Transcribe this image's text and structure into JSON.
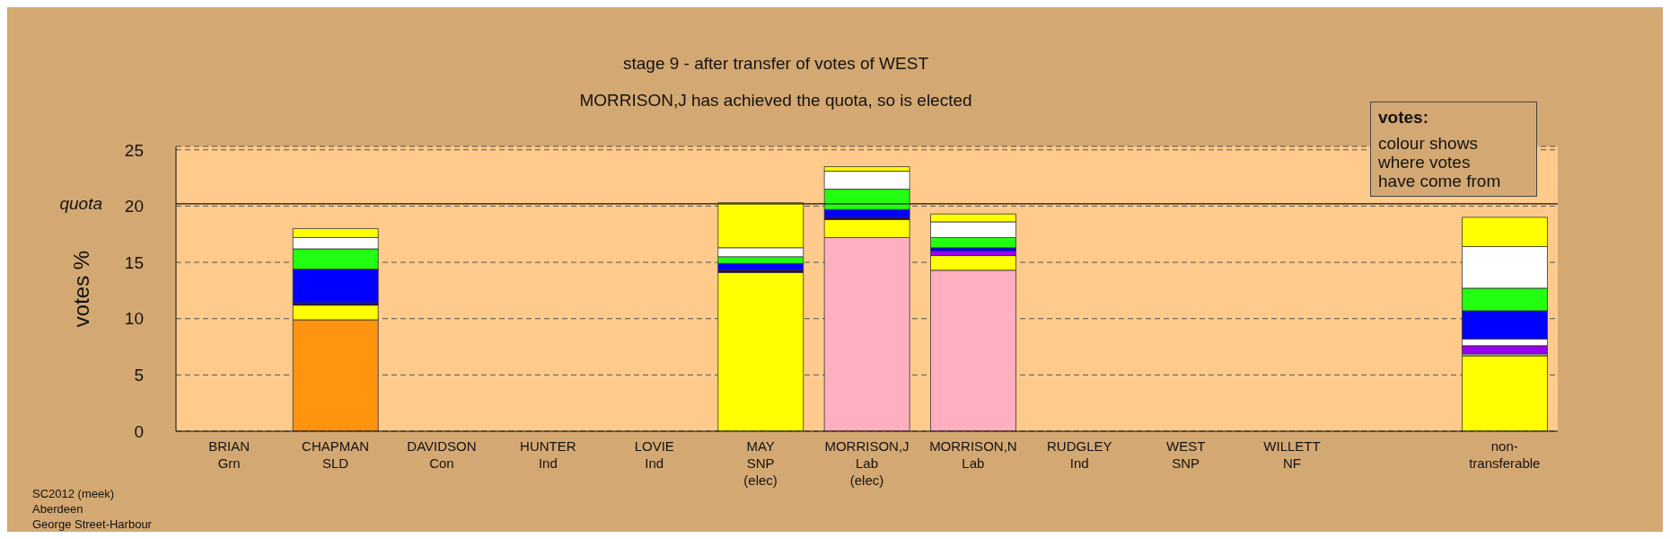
{
  "chart_data": {
    "type": "bar",
    "stacked": true,
    "title": "stage 9 - after transfer of votes of WEST",
    "subtitle": "MORRISON,J has achieved the quota, so is elected",
    "ylabel": "votes %",
    "categories": [
      "BRIAN\nGrn",
      "CHAPMAN\nSLD",
      "DAVIDSON\nCon",
      "HUNTER\nInd",
      "LOVIE\nInd",
      "MAY\nSNP\n(elec)",
      "MORRISON,J\nLab\n(elec)",
      "MORRISON,N\nLab",
      "RUDGLEY\nInd",
      "WEST\nSNP",
      "WILLETT\nNF",
      null,
      "non-\ntransferable"
    ],
    "series": [
      {
        "colors": [
          null,
          "#ff9411",
          null,
          null,
          null,
          "#ffff00",
          "#ffb0c0",
          "#ffb0c0",
          null,
          null,
          null,
          null,
          "#ffff00"
        ],
        "values": [
          null,
          9.9,
          null,
          null,
          null,
          14.1,
          17.2,
          14.3,
          null,
          null,
          null,
          null,
          6.7
        ]
      },
      {
        "color": "#ffff00",
        "values": [
          null,
          1.3,
          null,
          null,
          null,
          null,
          1.6,
          1.3,
          null,
          null,
          null,
          null,
          null
        ]
      },
      {
        "colors": [
          null,
          "#220044",
          null,
          null,
          null,
          "#220044",
          "#220044",
          null,
          null,
          null,
          null,
          null,
          "#999999"
        ],
        "values": [
          null,
          0.2,
          null,
          null,
          null,
          0.2,
          0.2,
          null,
          null,
          null,
          null,
          null,
          0.2
        ]
      },
      {
        "color": "#9900ee",
        "values": [
          null,
          null,
          null,
          null,
          null,
          null,
          null,
          0.4,
          null,
          null,
          null,
          null,
          0.7
        ]
      },
      {
        "color": "#ffffff",
        "values": [
          null,
          null,
          null,
          null,
          null,
          null,
          null,
          null,
          null,
          null,
          null,
          null,
          0.6
        ]
      },
      {
        "color": "#0000ff",
        "values": [
          null,
          3.0,
          null,
          null,
          null,
          0.6,
          0.7,
          0.3,
          null,
          null,
          null,
          null,
          2.5
        ]
      },
      {
        "color": "#22ff11",
        "values": [
          null,
          1.8,
          null,
          null,
          null,
          0.6,
          1.8,
          0.9,
          null,
          null,
          null,
          null,
          2.0
        ]
      },
      {
        "color": "#ffffff",
        "values": [
          null,
          1.0,
          null,
          null,
          null,
          0.8,
          1.6,
          1.4,
          null,
          null,
          null,
          null,
          3.7
        ]
      },
      {
        "color": "#ffff00",
        "values": [
          null,
          0.8,
          null,
          null,
          null,
          4.0,
          0.4,
          0.7,
          null,
          null,
          null,
          null,
          2.6
        ]
      }
    ],
    "ylim": [
      0,
      25.3
    ],
    "yticks": [
      0,
      5,
      10,
      15,
      20,
      25
    ],
    "grid": "y",
    "ref_lines": [
      {
        "axis": "y",
        "value": 20.2,
        "label": "quota"
      }
    ],
    "annotations": [
      "SC2012 (meek)",
      "Aberdeen",
      "George Street-Harbour",
      "votes:",
      "colour shows\nwhere votes\nhave come from"
    ]
  }
}
